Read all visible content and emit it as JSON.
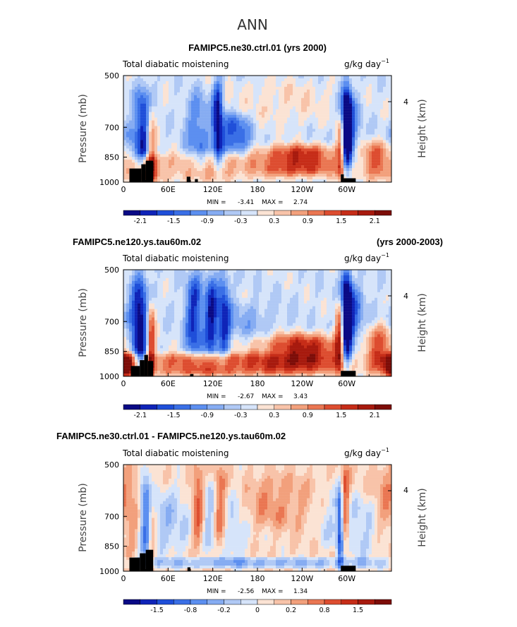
{
  "figure": {
    "main_title": "ANN"
  },
  "colors": {
    "palette": [
      "#0a0a85",
      "#0f24b8",
      "#1f4fd9",
      "#3a6fe6",
      "#5c8ff0",
      "#86acf2",
      "#b0c9f5",
      "#d6e4fa",
      "#fbe3d4",
      "#f8c3a9",
      "#f2a07c",
      "#ea7652",
      "#dd4d30",
      "#c62d18",
      "#a71a0e",
      "#7d0d08"
    ],
    "land_mask": "#000000"
  },
  "chart_data": [
    {
      "type": "heatmap",
      "id": "p1",
      "title": "FAMIPC5.ne30.ctrl.01 (yrs 2000)",
      "left_label": "Total diabatic moistening",
      "units": "g/kg day",
      "units_exp": "−1",
      "ylabel": "Pressure (mb)",
      "ylabel_right": "Height (km)",
      "right_tick": "4",
      "yticks": [
        "500",
        "700",
        "850",
        "1000"
      ],
      "xticks": [
        "0",
        "60E",
        "120E",
        "180",
        "120W",
        "60W"
      ],
      "xlim": [
        0,
        360
      ],
      "stats": {
        "min_label": "MIN =",
        "min": "-3.41",
        "max_label": "MAX =",
        "max": "2.74"
      },
      "colorbar": {
        "labels": [
          "-2.1",
          "-1.5",
          "-0.9",
          "-0.3",
          "0.3",
          "0.9",
          "1.5",
          "2.1"
        ]
      },
      "field": {
        "bg": -0.15,
        "features": [
          {
            "lon": 28,
            "lon_w": 9,
            "top": 0.12,
            "bottom": 0.95,
            "amp": -1.9
          },
          {
            "lon": 37,
            "lon_w": 5,
            "top": 0.25,
            "bottom": 1.0,
            "amp": 1.8
          },
          {
            "lon": 8,
            "lon_w": 12,
            "top": 0.45,
            "bottom": 1.0,
            "amp": -0.7
          },
          {
            "lon": 30,
            "lon_w": 14,
            "top": 0.75,
            "bottom": 1.0,
            "amp": 1.6
          },
          {
            "lon": 100,
            "lon_w": 12,
            "top": 0.15,
            "bottom": 0.9,
            "amp": -1.0
          },
          {
            "lon": 127,
            "lon_w": 5,
            "top": 0.05,
            "bottom": 0.85,
            "amp": -2.0
          },
          {
            "lon": 150,
            "lon_w": 14,
            "top": 0.35,
            "bottom": 0.75,
            "amp": -1.4
          },
          {
            "lon": 110,
            "lon_w": 45,
            "top": 0.72,
            "bottom": 1.0,
            "amp": 0.9
          },
          {
            "lon": 235,
            "lon_w": 38,
            "top": 0.65,
            "bottom": 0.95,
            "amp": 1.9
          },
          {
            "lon": 215,
            "lon_w": 50,
            "top": 0.05,
            "bottom": 0.45,
            "amp": 0.35
          },
          {
            "lon": 300,
            "lon_w": 5,
            "top": 0.05,
            "bottom": 0.9,
            "amp": -2.5
          },
          {
            "lon": 305,
            "lon_w": 10,
            "top": 0.2,
            "bottom": 0.85,
            "amp": -1.0
          },
          {
            "lon": 292,
            "lon_w": 4,
            "top": 0.4,
            "bottom": 1.0,
            "amp": 1.6
          },
          {
            "lon": 345,
            "lon_w": 20,
            "top": 0.6,
            "bottom": 1.0,
            "amp": 1.3
          }
        ],
        "land": [
          {
            "lon": [
              8,
              24
            ],
            "p": 915
          },
          {
            "lon": [
              24,
              30
            ],
            "p": 890
          },
          {
            "lon": [
              30,
              40
            ],
            "p": 870
          },
          {
            "lon": [
              85,
              90
            ],
            "p": 965
          },
          {
            "lon": [
              96,
              100
            ],
            "p": 980
          },
          {
            "lon": [
              292,
              296
            ],
            "p": 950
          },
          {
            "lon": [
              296,
              312
            ],
            "p": 975
          }
        ]
      }
    },
    {
      "type": "heatmap",
      "id": "p2",
      "title": "FAMIPC5.ne120.ys.tau60m.02",
      "title_right": "(yrs 2000-2003)",
      "left_label": "Total diabatic moistening",
      "units": "g/kg day",
      "units_exp": "−1",
      "ylabel": "Pressure (mb)",
      "ylabel_right": "Height (km)",
      "right_tick": "4",
      "yticks": [
        "500",
        "700",
        "850",
        "1000"
      ],
      "xticks": [
        "0",
        "60E",
        "120E",
        "180",
        "120W",
        "60W"
      ],
      "xlim": [
        0,
        360
      ],
      "stats": {
        "min_label": "MIN =",
        "min": "-2.67",
        "max_label": "MAX =",
        "max": "3.43"
      },
      "colorbar": {
        "labels": [
          "-2.1",
          "-1.5",
          "-0.9",
          "-0.3",
          "0.3",
          "0.9",
          "1.5",
          "2.1"
        ]
      },
      "field": {
        "bg": -0.2,
        "features": [
          {
            "lon": 22,
            "lon_w": 8,
            "top": 0.05,
            "bottom": 0.95,
            "amp": -1.9
          },
          {
            "lon": 37,
            "lon_w": 4,
            "top": 0.3,
            "bottom": 1.0,
            "amp": 1.9
          },
          {
            "lon": 10,
            "lon_w": 14,
            "top": 0.35,
            "bottom": 0.95,
            "amp": -0.8
          },
          {
            "lon": 95,
            "lon_w": 8,
            "top": 0.05,
            "bottom": 0.85,
            "amp": -1.6
          },
          {
            "lon": 118,
            "lon_w": 6,
            "top": 0.05,
            "bottom": 0.85,
            "amp": -1.7
          },
          {
            "lon": 135,
            "lon_w": 6,
            "top": 0.05,
            "bottom": 0.85,
            "amp": -1.5
          },
          {
            "lon": 160,
            "lon_w": 30,
            "top": 0.3,
            "bottom": 0.65,
            "amp": -0.5
          },
          {
            "lon": 110,
            "lon_w": 70,
            "top": 0.78,
            "bottom": 1.0,
            "amp": 1.7
          },
          {
            "lon": 240,
            "lon_w": 40,
            "top": 0.6,
            "bottom": 0.98,
            "amp": 2.1
          },
          {
            "lon": 300,
            "lon_w": 5,
            "top": 0.0,
            "bottom": 0.9,
            "amp": -2.6
          },
          {
            "lon": 310,
            "lon_w": 10,
            "top": 0.15,
            "bottom": 0.8,
            "amp": -1.1
          },
          {
            "lon": 290,
            "lon_w": 4,
            "top": 0.3,
            "bottom": 1.0,
            "amp": 1.7
          },
          {
            "lon": 350,
            "lon_w": 18,
            "top": 0.5,
            "bottom": 1.0,
            "amp": 1.6
          },
          {
            "lon": 5,
            "lon_w": 10,
            "top": 0.78,
            "bottom": 1.0,
            "amp": 1.8
          }
        ],
        "land": [
          {
            "lon": [
              10,
              22
            ],
            "p": 935
          },
          {
            "lon": [
              22,
              28
            ],
            "p": 900
          },
          {
            "lon": [
              28,
              33
            ],
            "p": 870
          },
          {
            "lon": [
              33,
              40
            ],
            "p": 905
          },
          {
            "lon": [
              90,
              94
            ],
            "p": 985
          },
          {
            "lon": [
              292,
              312
            ],
            "p": 965
          }
        ]
      }
    },
    {
      "type": "heatmap",
      "id": "p3",
      "title": "FAMIPC5.ne30.ctrl.01 - FAMIPC5.ne120.ys.tau60m.02",
      "left_label": "Total diabatic moistening",
      "units": "g/kg day",
      "units_exp": "−1",
      "ylabel": "Pressure (mb)",
      "ylabel_right": "Height (km)",
      "right_tick": "4",
      "yticks": [
        "500",
        "700",
        "850",
        "1000"
      ],
      "xticks": [
        "0",
        "60E",
        "120E",
        "180",
        "120W",
        "60W"
      ],
      "xlim": [
        0,
        360
      ],
      "stats": {
        "min_label": "MIN =",
        "min": "-2.56",
        "max_label": "MAX =",
        "max": "1.34"
      },
      "colorbar": {
        "labels": [
          "-1.5",
          "-0.8",
          "-0.2",
          "0",
          "0.2",
          "0.8",
          "1.5"
        ]
      },
      "field": {
        "bg": 0.25,
        "features": [
          {
            "lon": 12,
            "lon_w": 10,
            "top": 0.0,
            "bottom": 0.85,
            "amp": 0.6
          },
          {
            "lon": 30,
            "lon_w": 6,
            "top": 0.0,
            "bottom": 0.95,
            "amp": -1.3
          },
          {
            "lon": 38,
            "lon_w": 4,
            "top": 0.2,
            "bottom": 0.95,
            "amp": 0.9
          },
          {
            "lon": 60,
            "lon_w": 25,
            "top": 0.2,
            "bottom": 0.85,
            "amp": -0.7
          },
          {
            "lon": 100,
            "lon_w": 6,
            "top": 0.0,
            "bottom": 0.8,
            "amp": 1.1
          },
          {
            "lon": 115,
            "lon_w": 6,
            "top": 0.1,
            "bottom": 0.85,
            "amp": -0.7
          },
          {
            "lon": 130,
            "lon_w": 5,
            "top": 0.0,
            "bottom": 0.8,
            "amp": 0.9
          },
          {
            "lon": 150,
            "lon_w": 14,
            "top": 0.15,
            "bottom": 0.9,
            "amp": -0.6
          },
          {
            "lon": 200,
            "lon_w": 40,
            "top": 0.1,
            "bottom": 0.6,
            "amp": 0.55
          },
          {
            "lon": 180,
            "lon_w": 150,
            "top": 0.88,
            "bottom": 0.96,
            "amp": -0.9
          },
          {
            "lon": 280,
            "lon_w": 15,
            "top": 0.2,
            "bottom": 0.8,
            "amp": -0.5
          },
          {
            "lon": 298,
            "lon_w": 4,
            "top": 0.0,
            "bottom": 0.8,
            "amp": 1.2
          },
          {
            "lon": 291,
            "lon_w": 3,
            "top": 0.2,
            "bottom": 1.0,
            "amp": -1.6
          },
          {
            "lon": 320,
            "lon_w": 15,
            "top": 0.3,
            "bottom": 0.9,
            "amp": -0.6
          },
          {
            "lon": 350,
            "lon_w": 10,
            "top": 0.0,
            "bottom": 0.6,
            "amp": 0.5
          }
        ],
        "land": [
          {
            "lon": [
              8,
              22
            ],
            "p": 915
          },
          {
            "lon": [
              22,
              30
            ],
            "p": 890
          },
          {
            "lon": [
              30,
              40
            ],
            "p": 870
          },
          {
            "lon": [
              86,
              90
            ],
            "p": 975
          },
          {
            "lon": [
              292,
              312
            ],
            "p": 965
          }
        ]
      }
    }
  ]
}
